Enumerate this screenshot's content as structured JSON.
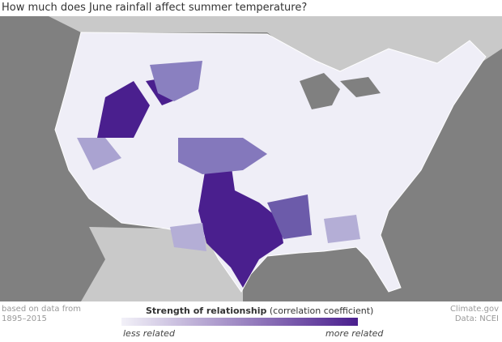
{
  "title": "How much does June rainfall affect summer temperature?",
  "footer": {
    "note_line1": "based on data from",
    "note_line2": "1895–2015",
    "credit_line1": "Climate.gov",
    "credit_line2": "Data: NCEI"
  },
  "legend": {
    "title_bold": "Strength of relationship",
    "title_rest": "(correlation coefficient)",
    "low_label": "less related",
    "high_label": "more related"
  }
}
